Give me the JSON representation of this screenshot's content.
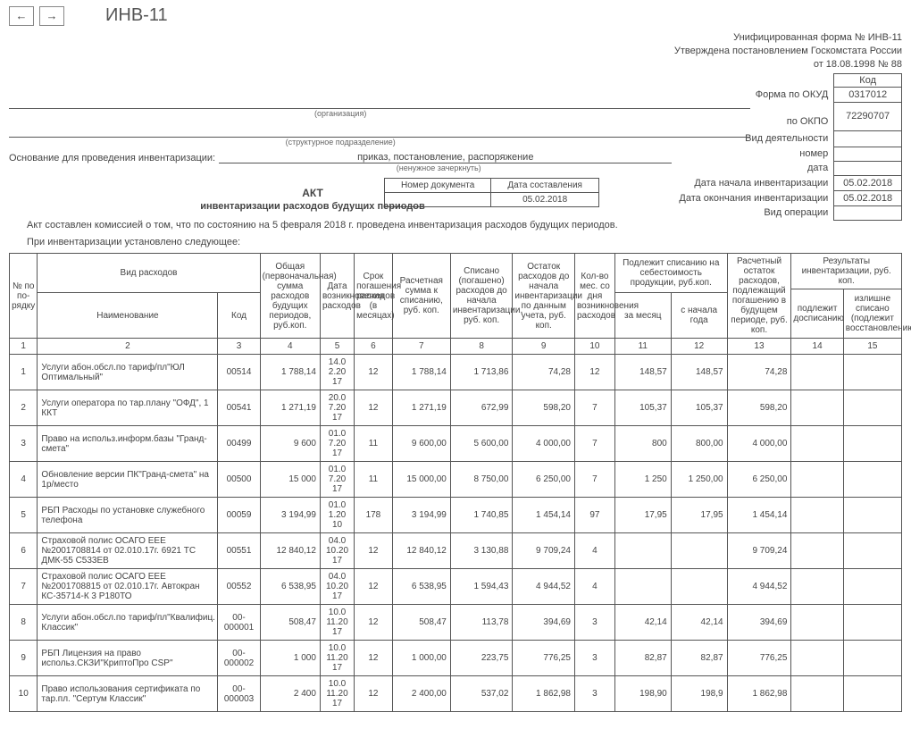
{
  "topbar": {
    "title": "ИНВ-11"
  },
  "header": {
    "line1": "Унифицированная форма № ИНВ-11",
    "line2": "Утверждена постановлением Госкомстата России",
    "line3": "от 18.08.1998 № 88",
    "code_hdr": "Код",
    "okud_lbl": "Форма по ОКУД",
    "okud_val": "0317012",
    "okpo_lbl": "по ОКПО",
    "okpo_val": "72290707",
    "org_caption": "(организация)",
    "subdiv_caption": "(структурное подразделение)",
    "activity_lbl": "Вид деятельности",
    "basis_lbl": "Основание для проведения инвентаризации:",
    "basis_val": "приказ, постановление, распоряжение",
    "basis_note": "(ненужное зачеркнуть)",
    "num_lbl": "номер",
    "date_lbl": "дата",
    "start_lbl": "Дата начала инвентаризации",
    "start_val": "05.02.2018",
    "end_lbl": "Дата окончания инвентаризации",
    "end_val": "05.02.2018",
    "oper_lbl": "Вид операции",
    "docnum_lbl": "Номер документа",
    "docdate_lbl": "Дата составления",
    "docdate_val": "05.02.2018"
  },
  "act": {
    "title": "АКТ",
    "subtitle": "инвентаризации расходов будущих периодов",
    "intro1": "Акт составлен комиссией о том, что по состоянию на 5 февраля 2018 г. проведена инвентаризация расходов будущих периодов.",
    "intro2": "При инвентаризации установлено следующее:"
  },
  "cols": {
    "c1": "№ по по-рядку",
    "c2g": "Вид расходов",
    "c2": "Наименование",
    "c3": "Код",
    "c4": "Общая (первоначальная) сумма расходов будущих периодов, руб.коп.",
    "c5": "Дата возникновения расходов",
    "c6": "Срок погашения расходов (в месяцах)",
    "c7": "Расчетная сумма к списанию, руб. коп.",
    "c8": "Списано (погашено) расходов до начала инвентаризации, руб. коп.",
    "c9": "Остаток расходов до начала инвентаризации по данным учета, руб. коп.",
    "c10": "Кол-во мес. со дня возникновения расходов",
    "c1112g": "Подлежит списанию на себестоимость продукции, руб.коп.",
    "c11": "за месяц",
    "c12": "с начала года",
    "c13": "Расчетный остаток расходов, подлежащий погашению в будущем периоде, руб. коп.",
    "c1415g": "Результаты инвентаризации, руб. коп.",
    "c14": "подлежит досписанию",
    "c15": "излишне списано (подлежит восстановлению)"
  },
  "nums": [
    "1",
    "2",
    "3",
    "4",
    "5",
    "6",
    "7",
    "8",
    "9",
    "10",
    "11",
    "12",
    "13",
    "14",
    "15"
  ],
  "rows": [
    {
      "n": "1",
      "name": "Услуги абон.обсл.по тариф/пл\"ЮЛ Оптимальный\"",
      "code": "00514",
      "c4": "1 788,14",
      "c5": "14.02.2017",
      "c6": "12",
      "c7": "1 788,14",
      "c8": "1 713,86",
      "c9": "74,28",
      "c10": "12",
      "c11": "148,57",
      "c12": "148,57",
      "c13": "74,28",
      "c14": "",
      "c15": ""
    },
    {
      "n": "2",
      "name": "Услуги оператора по тар.плану \"ОФД\", 1 ККТ",
      "code": "00541",
      "c4": "1 271,19",
      "c5": "20.07.2017",
      "c6": "12",
      "c7": "1 271,19",
      "c8": "672,99",
      "c9": "598,20",
      "c10": "7",
      "c11": "105,37",
      "c12": "105,37",
      "c13": "598,20",
      "c14": "",
      "c15": ""
    },
    {
      "n": "3",
      "name": "Право на использ.информ.базы \"Гранд-смета\"",
      "code": "00499",
      "c4": "9 600",
      "c5": "01.07.2017",
      "c6": "11",
      "c7": "9 600,00",
      "c8": "5 600,00",
      "c9": "4 000,00",
      "c10": "7",
      "c11": "800",
      "c12": "800,00",
      "c13": "4 000,00",
      "c14": "",
      "c15": ""
    },
    {
      "n": "4",
      "name": "Обновление версии ПК\"Гранд-смета\" на 1р/место",
      "code": "00500",
      "c4": "15 000",
      "c5": "01.07.2017",
      "c6": "11",
      "c7": "15 000,00",
      "c8": "8 750,00",
      "c9": "6 250,00",
      "c10": "7",
      "c11": "1 250",
      "c12": "1 250,00",
      "c13": "6 250,00",
      "c14": "",
      "c15": ""
    },
    {
      "n": "5",
      "name": "РБП Расходы по установке служебного телефона",
      "code": "00059",
      "c4": "3 194,99",
      "c5": "01.01.2010",
      "c6": "178",
      "c7": "3 194,99",
      "c8": "1 740,85",
      "c9": "1 454,14",
      "c10": "97",
      "c11": "17,95",
      "c12": "17,95",
      "c13": "1 454,14",
      "c14": "",
      "c15": ""
    },
    {
      "n": "6",
      "name": "Страховой полис ОСАГО ЕЕЕ №2001708814 от 02.010.17г. 6921 ТС ДМК-55 С533ЕВ",
      "code": "00551",
      "c4": "12 840,12",
      "c5": "04.10.2017",
      "c6": "12",
      "c7": "12 840,12",
      "c8": "3 130,88",
      "c9": "9 709,24",
      "c10": "4",
      "c11": "",
      "c12": "",
      "c13": "9 709,24",
      "c14": "",
      "c15": ""
    },
    {
      "n": "7",
      "name": "Страховой полис ОСАГО ЕЕЕ №2001708815 от 02.010.17г. Автокран КС-35714-К 3 Р180ТО",
      "code": "00552",
      "c4": "6 538,95",
      "c5": "04.10.2017",
      "c6": "12",
      "c7": "6 538,95",
      "c8": "1 594,43",
      "c9": "4 944,52",
      "c10": "4",
      "c11": "",
      "c12": "",
      "c13": "4 944,52",
      "c14": "",
      "c15": ""
    },
    {
      "n": "8",
      "name": "Услуги абон.обсл.по тариф/пл\"Квалифиц. Классик\"",
      "code": "00-000001",
      "c4": "508,47",
      "c5": "10.11.2017",
      "c6": "12",
      "c7": "508,47",
      "c8": "113,78",
      "c9": "394,69",
      "c10": "3",
      "c11": "42,14",
      "c12": "42,14",
      "c13": "394,69",
      "c14": "",
      "c15": ""
    },
    {
      "n": "9",
      "name": "РБП Лицензия на право использ.СКЗИ\"КриптоПро CSP\"",
      "code": "00-000002",
      "c4": "1 000",
      "c5": "10.11.2017",
      "c6": "12",
      "c7": "1 000,00",
      "c8": "223,75",
      "c9": "776,25",
      "c10": "3",
      "c11": "82,87",
      "c12": "82,87",
      "c13": "776,25",
      "c14": "",
      "c15": ""
    },
    {
      "n": "10",
      "name": "Право использования сертификата по тар.пл. \"Сертум Классик\"",
      "code": "00-000003",
      "c4": "2 400",
      "c5": "10.11.2017",
      "c6": "12",
      "c7": "2 400,00",
      "c8": "537,02",
      "c9": "1 862,98",
      "c10": "3",
      "c11": "198,90",
      "c12": "198,9",
      "c13": "1 862,98",
      "c14": "",
      "c15": ""
    }
  ],
  "style": {
    "border_color": "#555555",
    "text_color": "#444444",
    "bg": "#ffffff"
  }
}
